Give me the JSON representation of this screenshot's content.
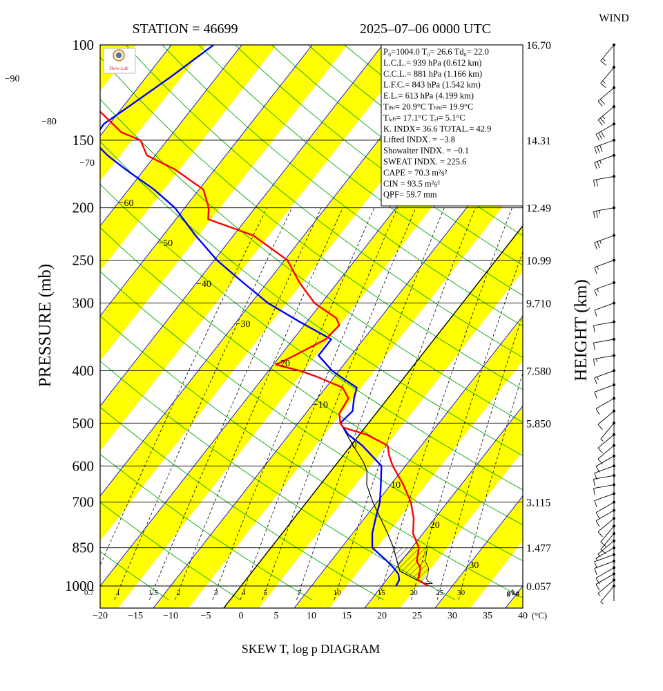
{
  "header": {
    "station": "STATION = 46699",
    "datetime": "2025–07–06 0000 UTC",
    "wind_label": "WIND"
  },
  "footer": {
    "title": "SKEW T, log p DIAGRAM"
  },
  "axes": {
    "ylabel": "PRESSURE (mb)",
    "y2label": "HEIGHT (km)",
    "xunit": "(°C)",
    "pressure_ticks": [
      "100",
      "150",
      "200",
      "250",
      "300",
      "400",
      "500",
      "600",
      "700",
      "850",
      "1000"
    ],
    "height_ticks": [
      "16.70",
      "14.31",
      "12.49",
      "10.99",
      "9.710",
      "7.580",
      "5.850",
      "3.115",
      "1.477",
      "0.057"
    ],
    "temp_ticks": [
      "−20",
      "−15",
      "−10",
      "−5",
      "0",
      "5",
      "10",
      "15",
      "20",
      "25",
      "30",
      "35",
      "40"
    ],
    "mixing_ratio_labels": [
      "0.7",
      "1",
      "1.5",
      "2",
      "3",
      "4",
      "5",
      "7",
      "10",
      "15",
      "20",
      "25",
      "30"
    ],
    "mixing_ratio_unit": "g/kg",
    "isotherm_labels": [
      "−90",
      "−80",
      "−70",
      "−60",
      "−50",
      "−40",
      "−30",
      "−20",
      "−10",
      "0",
      "10",
      "20",
      "30"
    ]
  },
  "indices": [
    "P₀=1004.0 T₀= 26.6 Td₀= 22.0",
    "L.C.L.= 939 hPa (0.612 km)",
    "C.C.L.= 881 hPa (1.166 km)",
    "L.F.C.= 843 hPa (1.542 km)",
    "E.L.= 613 hPa (4.199 km)",
    "Tₗₕₗ= 20.9°C Tₕₕₗ= 19.9°C",
    "Tₗₒₕ= 17.1°C  Tₑₗ= 5.1°C",
    "K. INDX= 36.6  TOTAL.= 42.9",
    "Lifted INDX. =  −3.8",
    "Showalter INDX. =   −0.1",
    "SWEAT INDX. =  225.6",
    "CAPE =   70.3 m²s²",
    "CIN  =   93.5 m²s²",
    "QPF= 59.7 mm"
  ],
  "colors": {
    "temperature": "#ff0000",
    "dewpoint": "#0000ff",
    "band": "#ffff00",
    "isotherm": "#0000ff",
    "dry_adiabat": "#00aa00",
    "mixing_ratio": "#000000"
  },
  "chart_data": {
    "type": "line",
    "title": "SKEW T, log p DIAGRAM",
    "xlabel": "(°C)",
    "ylabel": "PRESSURE (mb)",
    "xlim": [
      -20,
      40
    ],
    "ylim": [
      1000,
      100
    ],
    "series": [
      {
        "name": "Temperature",
        "points": [
          [
            1000,
            26.6
          ],
          [
            975,
            24.4
          ],
          [
            950,
            24.0
          ],
          [
            925,
            23.4
          ],
          [
            900,
            22.2
          ],
          [
            850,
            21.0
          ],
          [
            800,
            18.6
          ],
          [
            750,
            17.0
          ],
          [
            700,
            14.8
          ],
          [
            650,
            11.8
          ],
          [
            600,
            8.2
          ],
          [
            575,
            6.6
          ],
          [
            550,
            5.2
          ],
          [
            525,
            1.0
          ],
          [
            510,
            -3.0
          ],
          [
            500,
            -4.0
          ],
          [
            480,
            -5.2
          ],
          [
            450,
            -5.6
          ],
          [
            430,
            -7.6
          ],
          [
            410,
            -12.6
          ],
          [
            400,
            -15.6
          ],
          [
            390,
            -19.6
          ],
          [
            375,
            -18.0
          ],
          [
            350,
            -15.4
          ],
          [
            330,
            -15.0
          ],
          [
            320,
            -16.2
          ],
          [
            300,
            -21.0
          ],
          [
            275,
            -25.4
          ],
          [
            250,
            -29.6
          ],
          [
            225,
            -37.2
          ],
          [
            210,
            -45.4
          ],
          [
            200,
            -46.6
          ],
          [
            185,
            -49.4
          ],
          [
            170,
            -55.6
          ],
          [
            160,
            -61.2
          ],
          [
            150,
            -63.8
          ],
          [
            145,
            -67.4
          ],
          [
            130,
            -74.0
          ],
          [
            115,
            -76.6
          ],
          [
            100,
            -80.2
          ]
        ]
      },
      {
        "name": "Dewpoint",
        "points": [
          [
            1000,
            22.0
          ],
          [
            975,
            21.8
          ],
          [
            950,
            21.0
          ],
          [
            925,
            19.6
          ],
          [
            900,
            18.0
          ],
          [
            850,
            14.4
          ],
          [
            800,
            12.8
          ],
          [
            750,
            11.6
          ],
          [
            700,
            10.4
          ],
          [
            650,
            8.6
          ],
          [
            600,
            6.6
          ],
          [
            550,
            1.6
          ],
          [
            525,
            -1.6
          ],
          [
            500,
            -4.0
          ],
          [
            475,
            -3.6
          ],
          [
            450,
            -4.8
          ],
          [
            430,
            -5.6
          ],
          [
            410,
            -9.2
          ],
          [
            400,
            -11.0
          ],
          [
            375,
            -14.6
          ],
          [
            350,
            -14.6
          ],
          [
            325,
            -21.0
          ],
          [
            300,
            -27.6
          ],
          [
            275,
            -33.4
          ],
          [
            250,
            -39.6
          ],
          [
            225,
            -45.4
          ],
          [
            200,
            -51.4
          ],
          [
            185,
            -56.4
          ],
          [
            170,
            -62.6
          ],
          [
            160,
            -66.8
          ],
          [
            150,
            -70.6
          ],
          [
            140,
            -70.8
          ],
          [
            130,
            -69.2
          ],
          [
            115,
            -66.6
          ],
          [
            100,
            -64.0
          ]
        ]
      },
      {
        "name": "Parcel",
        "points": [
          [
            1000,
            26.6
          ],
          [
            939,
            20.9
          ],
          [
            900,
            19.4
          ],
          [
            850,
            17.4
          ],
          [
            800,
            15.0
          ],
          [
            750,
            12.3
          ],
          [
            700,
            9.4
          ],
          [
            650,
            6.6
          ],
          [
            613,
            5.1
          ],
          [
            590,
            3.6
          ],
          [
            550,
            0.3
          ],
          [
            500,
            -4.0
          ]
        ]
      }
    ],
    "pressure_levels": [
      100,
      150,
      200,
      250,
      300,
      400,
      500,
      600,
      700,
      850,
      1000
    ],
    "heights_km": [
      16.7,
      14.31,
      12.49,
      10.99,
      9.71,
      7.58,
      5.85,
      3.115,
      1.477,
      0.057
    ],
    "mixing_ratios_gkg": [
      0.7,
      1,
      1.5,
      2,
      3,
      4,
      5,
      7,
      10,
      15,
      20,
      25,
      30
    ],
    "wind": {
      "levels_hpa": [
        1000,
        975,
        950,
        925,
        900,
        875,
        850,
        825,
        800,
        775,
        750,
        725,
        700,
        675,
        650,
        625,
        600,
        575,
        550,
        525,
        500,
        475,
        450,
        425,
        400,
        375,
        350,
        325,
        300,
        275,
        250,
        225,
        200,
        175,
        160,
        150,
        140,
        130,
        120,
        110,
        100
      ],
      "speed_kt": [
        5,
        8,
        10,
        10,
        12,
        10,
        8,
        8,
        10,
        10,
        12,
        12,
        14,
        12,
        10,
        10,
        12,
        12,
        10,
        10,
        8,
        10,
        12,
        14,
        15,
        15,
        12,
        12,
        12,
        15,
        18,
        25,
        28,
        22,
        25,
        30,
        30,
        25,
        20,
        15,
        15
      ],
      "dir_deg": [
        220,
        230,
        240,
        240,
        250,
        250,
        240,
        230,
        220,
        220,
        230,
        240,
        240,
        250,
        260,
        260,
        250,
        240,
        230,
        230,
        220,
        230,
        240,
        250,
        250,
        260,
        260,
        260,
        250,
        250,
        250,
        250,
        260,
        260,
        250,
        250,
        240,
        230,
        230,
        220,
        220
      ]
    }
  }
}
